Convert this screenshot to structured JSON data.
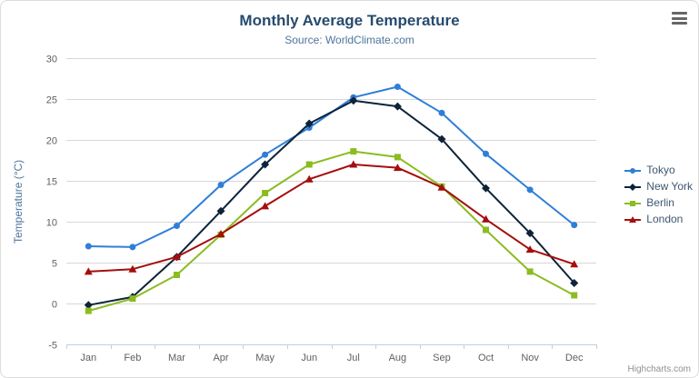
{
  "header": {
    "title": "Monthly Average Temperature",
    "subtitle": "Source: WorldClimate.com"
  },
  "menu": {
    "icon": "hamburger-icon"
  },
  "credit": {
    "label": "Highcharts.com"
  },
  "colors": {
    "title_text": "#274b6d",
    "subtitle_text": "#4d759e",
    "axis_label_text": "#606060",
    "legend_text": "#3e576f",
    "gridline": "#d8d8d8",
    "axis_line": "#c0d0e0",
    "credit_text": "#909090"
  },
  "chart_data": {
    "type": "line",
    "title": "Monthly Average Temperature",
    "subtitle": "Source: WorldClimate.com",
    "xlabel": "",
    "ylabel": "Temperature (°C)",
    "ylim": [
      -5,
      30
    ],
    "ytick_step": 5,
    "grid": "horizontal",
    "legend_position": "right",
    "categories": [
      "Jan",
      "Feb",
      "Mar",
      "Apr",
      "May",
      "Jun",
      "Jul",
      "Aug",
      "Sep",
      "Oct",
      "Nov",
      "Dec"
    ],
    "series": [
      {
        "name": "Tokyo",
        "color": "#2f7ed8",
        "marker": "circle",
        "values": [
          7.0,
          6.9,
          9.5,
          14.5,
          18.2,
          21.5,
          25.2,
          26.5,
          23.3,
          18.3,
          13.9,
          9.6
        ]
      },
      {
        "name": "New York",
        "color": "#0d233a",
        "marker": "diamond",
        "values": [
          -0.2,
          0.8,
          5.7,
          11.3,
          17.0,
          22.0,
          24.8,
          24.1,
          20.1,
          14.1,
          8.6,
          2.5
        ]
      },
      {
        "name": "Berlin",
        "color": "#8bbc21",
        "marker": "square",
        "values": [
          -0.9,
          0.6,
          3.5,
          8.4,
          13.5,
          17.0,
          18.6,
          17.9,
          14.3,
          9.0,
          3.9,
          1.0
        ]
      },
      {
        "name": "London",
        "color": "#a60d0d",
        "marker": "triangle",
        "values": [
          3.9,
          4.2,
          5.7,
          8.5,
          11.9,
          15.2,
          17.0,
          16.6,
          14.2,
          10.3,
          6.6,
          4.8
        ]
      }
    ]
  }
}
